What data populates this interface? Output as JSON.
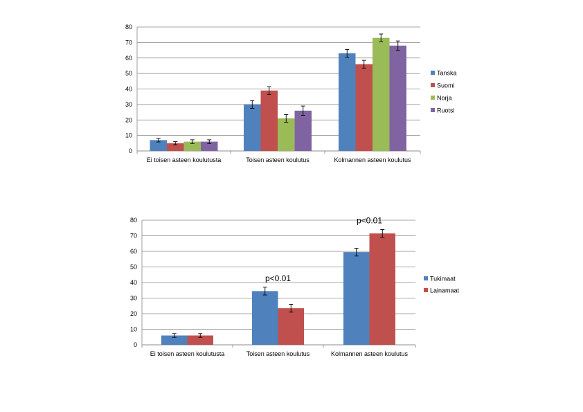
{
  "chart_data": [
    {
      "type": "bar",
      "title": "",
      "xlabel": "",
      "ylabel": "",
      "ylim": [
        0,
        80
      ],
      "yticks": [
        0,
        10,
        20,
        30,
        40,
        50,
        60,
        70,
        80
      ],
      "grid": true,
      "legend_position": "right",
      "categories": [
        "Ei toisen asteen koulutusta",
        "Toisen asteen koulutus",
        "Kolmannen asteen koulutus"
      ],
      "series": [
        {
          "name": "Tanska",
          "color": "#4F81BD",
          "values": [
            7,
            30,
            63
          ],
          "errors": [
            1.2,
            2.5,
            2.5
          ]
        },
        {
          "name": "Suomi",
          "color": "#C0504D",
          "values": [
            5,
            39,
            56
          ],
          "errors": [
            1.0,
            2.5,
            2.5
          ]
        },
        {
          "name": "Norja",
          "color": "#9BBB59",
          "values": [
            6,
            21,
            73
          ],
          "errors": [
            1.2,
            2.5,
            2.5
          ]
        },
        {
          "name": "Ruotsi",
          "color": "#8064A2",
          "values": [
            6,
            26,
            68
          ],
          "errors": [
            1.2,
            3.0,
            3.0
          ]
        }
      ],
      "annotations": []
    },
    {
      "type": "bar",
      "title": "",
      "xlabel": "",
      "ylabel": "",
      "ylim": [
        0,
        80
      ],
      "yticks": [
        0,
        10,
        20,
        30,
        40,
        50,
        60,
        70,
        80
      ],
      "grid": true,
      "legend_position": "right",
      "categories": [
        "Ei toisen asteen koulutusta",
        "Toisen asteen koulutus",
        "Kolmannen asteen koulutus"
      ],
      "series": [
        {
          "name": "Tukimaat",
          "color": "#4F81BD",
          "values": [
            6,
            34.5,
            59.5
          ],
          "errors": [
            1.2,
            2.5,
            2.5
          ]
        },
        {
          "name": "Lainamaat",
          "color": "#C0504D",
          "values": [
            6,
            23.5,
            71.5
          ],
          "errors": [
            1.2,
            2.5,
            2.5
          ]
        }
      ],
      "annotations": [
        {
          "category_index": 1,
          "text": "p<0.01"
        },
        {
          "category_index": 2,
          "text": "p<0.01"
        }
      ]
    }
  ]
}
